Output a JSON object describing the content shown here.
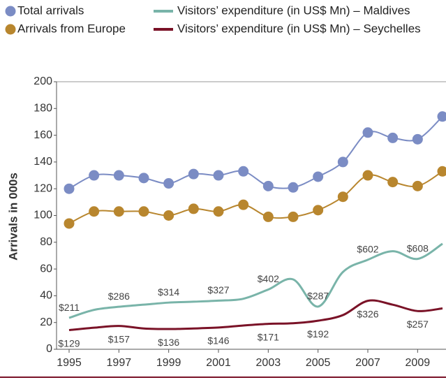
{
  "chart_data": {
    "type": "line",
    "y_label": "Arrivals in 000s",
    "x": [
      1995,
      1996,
      1997,
      1998,
      1999,
      2000,
      2001,
      2002,
      2003,
      2004,
      2005,
      2006,
      2007,
      2008,
      2009,
      2010
    ],
    "xlim": [
      1995,
      2010
    ],
    "xticks": [
      1995,
      1997,
      1999,
      2001,
      2003,
      2005,
      2007,
      2009
    ],
    "ylim": [
      0,
      200
    ],
    "yticks": [
      0,
      20,
      40,
      60,
      80,
      100,
      120,
      140,
      160,
      180,
      200
    ],
    "y2lim": [
      0,
      1800
    ],
    "grid": false,
    "legend": "top",
    "series": [
      {
        "name": "Total arrivals",
        "color": "#7b8cc4",
        "style": "markers",
        "values": [
          120,
          130,
          130,
          128,
          124,
          131,
          130,
          133,
          122,
          121,
          129,
          140,
          162,
          158,
          157,
          174
        ]
      },
      {
        "name": "Arrivals from Europe",
        "color": "#b8862e",
        "style": "markers",
        "values": [
          94,
          103,
          103,
          103,
          100,
          105,
          103,
          108,
          99,
          99,
          104,
          114,
          130,
          125,
          122,
          133
        ]
      },
      {
        "name": "Visitors’ expenditure (in US$ Mn) – Maldives",
        "color": "#79b4a9",
        "style": "line",
        "axis": "y2",
        "label_side": "above",
        "values": [
          211,
          265,
          286,
          300,
          314,
          320,
          327,
          340,
          402,
          470,
          287,
          520,
          602,
          660,
          608,
          710
        ],
        "value_labels": [
          "$211",
          null,
          "$286",
          null,
          "$314",
          null,
          "$327",
          null,
          "$402",
          null,
          "$287",
          null,
          "$602",
          null,
          "$608",
          null
        ]
      },
      {
        "name": "Visitors’ expenditure (in US$ Mn) – Seychelles",
        "color": "#7a1227",
        "style": "line",
        "axis": "y2",
        "label_side": "below",
        "values": [
          129,
          145,
          157,
          140,
          136,
          140,
          146,
          160,
          171,
          175,
          192,
          230,
          326,
          300,
          257,
          275
        ],
        "value_labels": [
          "$129",
          null,
          "$157",
          null,
          "$136",
          null,
          "$146",
          null,
          "$171",
          null,
          "$192",
          null,
          "$326",
          null,
          "$257",
          null
        ]
      }
    ]
  }
}
